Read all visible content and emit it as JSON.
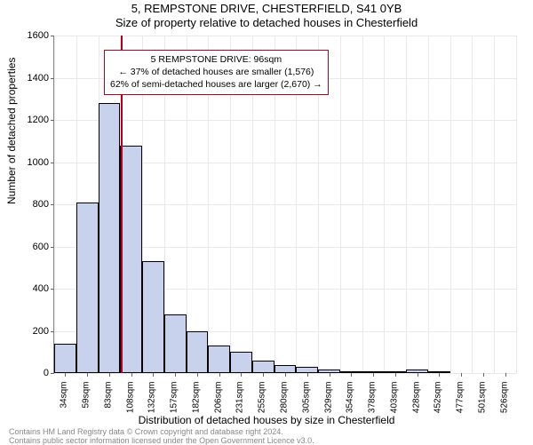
{
  "title_line1": "5, REMPSTONE DRIVE, CHESTERFIELD, S41 0YB",
  "title_line2": "Size of property relative to detached houses in Chesterfield",
  "ylabel": "Number of detached properties",
  "xlabel": "Distribution of detached houses by size in Chesterfield",
  "chart": {
    "type": "histogram",
    "background_color": "#ffffff",
    "grid_color": "#e8e8ee",
    "bar_fill": "#c8d2ec",
    "bar_stroke": "#000000",
    "ylim": [
      0,
      1600
    ],
    "ytick_step": 200,
    "x_categories": [
      "34sqm",
      "59sqm",
      "83sqm",
      "108sqm",
      "132sqm",
      "157sqm",
      "182sqm",
      "206sqm",
      "231sqm",
      "255sqm",
      "280sqm",
      "305sqm",
      "329sqm",
      "354sqm",
      "378sqm",
      "403sqm",
      "428sqm",
      "452sqm",
      "477sqm",
      "501sqm",
      "526sqm"
    ],
    "values": [
      140,
      810,
      1280,
      1080,
      530,
      280,
      200,
      130,
      100,
      60,
      40,
      30,
      15,
      10,
      10,
      5,
      15,
      10,
      0,
      0,
      0
    ],
    "marker": {
      "position_sqm": 96,
      "color": "#b00020"
    },
    "annotation": {
      "border_color": "#b00020",
      "lines": [
        "5 REMPSTONE DRIVE: 96sqm",
        "← 37% of detached houses are smaller (1,576)",
        "62% of semi-detached houses are larger (2,670) →"
      ]
    },
    "title_fontsize": 13,
    "label_fontsize": 12,
    "tick_fontsize": 11,
    "xtick_fontsize": 10
  },
  "footer_line1": "Contains HM Land Registry data © Crown copyright and database right 2024.",
  "footer_line2": "Contains public sector information licensed under the Open Government Licence v3.0."
}
